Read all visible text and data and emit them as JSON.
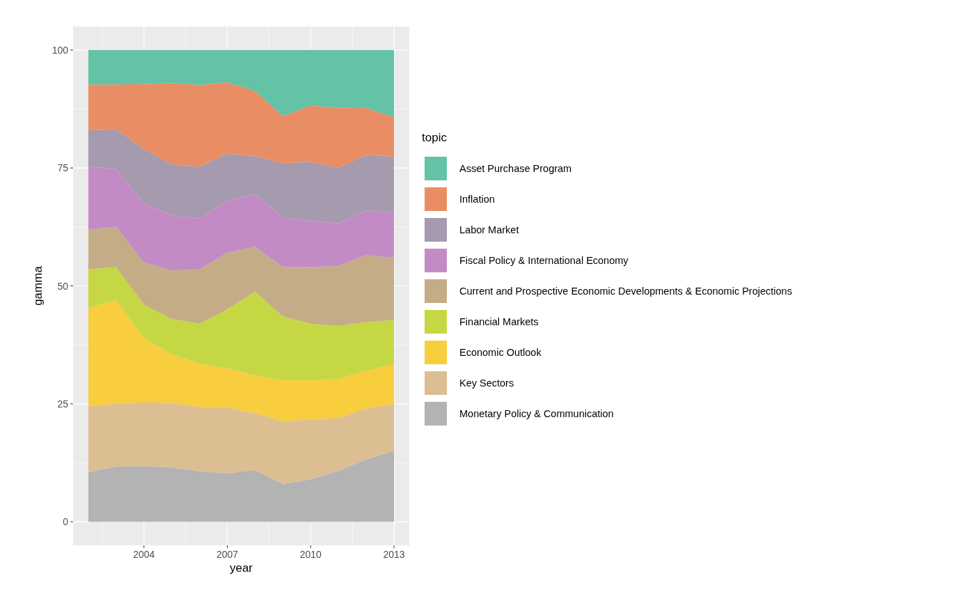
{
  "chart_data": {
    "type": "area",
    "stacked": true,
    "xlabel": "year",
    "ylabel": "gamma",
    "legend_title": "topic",
    "legend": "right",
    "grid": true,
    "x": [
      2002,
      2003,
      2004,
      2005,
      2006,
      2007,
      2008,
      2009,
      2010,
      2011,
      2012,
      2013
    ],
    "xlim": [
      2001.45,
      2013.55
    ],
    "xticks": [
      2004,
      2007,
      2010,
      2013
    ],
    "ylim": [
      -5,
      105
    ],
    "yticks": [
      0,
      25,
      50,
      75,
      100
    ],
    "series": [
      {
        "name": "Monetary Policy & Communication",
        "color": "#b3b3b3",
        "values": [
          10.5,
          11.7,
          11.8,
          11.5,
          10.7,
          10.3,
          11,
          8,
          9,
          10.8,
          13.2,
          15
        ]
      },
      {
        "name": "Key Sectors",
        "color": "#dbbf93",
        "values": [
          14,
          13.3,
          13.5,
          13.7,
          13.6,
          13.9,
          12,
          13.3,
          12.7,
          11.2,
          10.8,
          10
        ]
      },
      {
        "name": "Economic Outlook",
        "color": "#f8cd3e",
        "values": [
          20.8,
          22,
          13.7,
          10.3,
          9.2,
          8.3,
          8,
          8.7,
          8.3,
          8.3,
          8,
          8.5
        ]
      },
      {
        "name": "Financial Markets",
        "color": "#c5d844",
        "values": [
          8.2,
          7,
          7,
          7.5,
          8.5,
          12.5,
          17.8,
          13.5,
          12,
          11.2,
          10.3,
          9.3
        ]
      },
      {
        "name": "Current and Prospective Economic Developments & Economic Projections",
        "color": "#c4ad86",
        "values": [
          8.5,
          8.5,
          9,
          10.3,
          11.5,
          12,
          9.5,
          10.5,
          12,
          12.8,
          14.2,
          13.2
        ]
      },
      {
        "name": "Fiscal Policy & International Economy",
        "color": "#c38bc6",
        "values": [
          13.3,
          12.3,
          12.5,
          11.7,
          10.8,
          11,
          11.2,
          10.5,
          9.8,
          9,
          9.5,
          9.5
        ]
      },
      {
        "name": "Labor Market",
        "color": "#a59aae",
        "values": [
          7.7,
          8.4,
          11.5,
          10.8,
          10.9,
          10,
          8,
          11.5,
          12.5,
          11.7,
          11.8,
          11.9
        ]
      },
      {
        "name": "Inflation",
        "color": "#e98e64",
        "values": [
          9.7,
          9.5,
          13.8,
          17.2,
          17.4,
          15.2,
          13.8,
          10,
          11.9,
          12.8,
          9.9,
          8.4
        ]
      },
      {
        "name": "Asset Purchase Program",
        "color": "#64c2a6",
        "values": [
          7.3,
          7.3,
          7.2,
          7,
          7.4,
          6.8,
          8.7,
          14,
          11.8,
          12.2,
          12.3,
          14.2
        ]
      }
    ]
  }
}
